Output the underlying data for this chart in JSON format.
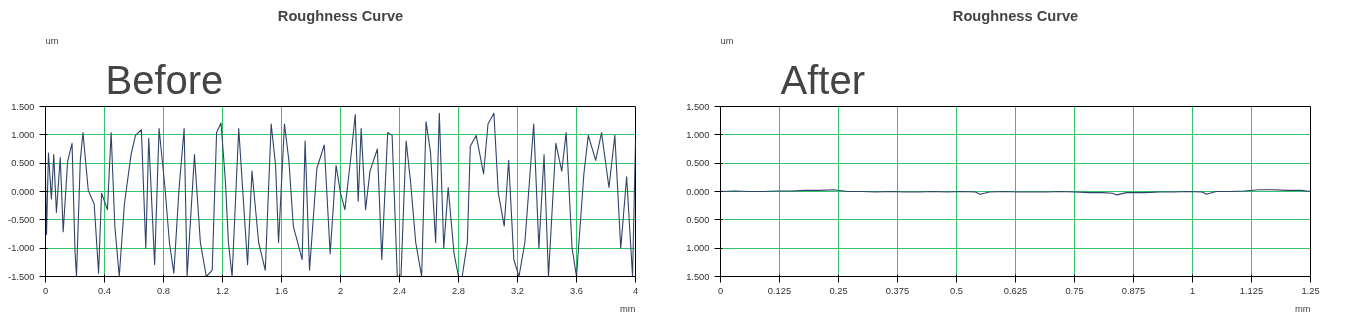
{
  "chart_data": [
    {
      "type": "line",
      "title": "Roughness Curve",
      "ylabel": "um",
      "xlabel": "mm",
      "annotations": [
        "Before"
      ],
      "grid": true,
      "marker": "none",
      "line_style": "solid",
      "xlim": [
        0,
        4
      ],
      "ylim": [
        -1.5,
        1.5
      ],
      "xticks": [
        0,
        0.4,
        0.8,
        1.2,
        1.6,
        2,
        2.4,
        2.8,
        3.2,
        3.6,
        4
      ],
      "yticks": [
        {
          "value": -1.5,
          "label": "-1.500"
        },
        {
          "value": -1,
          "label": "-1.000"
        },
        {
          "value": -0.5,
          "label": "-0.500"
        },
        {
          "value": 0,
          "label": "0.000"
        },
        {
          "value": 0.5,
          "label": "0.500"
        },
        {
          "value": 1,
          "label": "1.000"
        },
        {
          "value": 1.5,
          "label": "1.500"
        }
      ],
      "x": [
        0,
        0.007,
        0.02,
        0.04,
        0.056,
        0.074,
        0.1,
        0.12,
        0.15,
        0.18,
        0.2,
        0.21,
        0.236,
        0.254,
        0.29,
        0.33,
        0.36,
        0.38,
        0.42,
        0.445,
        0.47,
        0.5,
        0.535,
        0.58,
        0.61,
        0.65,
        0.68,
        0.7,
        0.74,
        0.77,
        0.81,
        0.84,
        0.87,
        0.906,
        0.94,
        0.96,
        1.01,
        1.05,
        1.09,
        1.13,
        1.16,
        1.19,
        1.22,
        1.24,
        1.265,
        1.31,
        1.33,
        1.37,
        1.4,
        1.445,
        1.49,
        1.53,
        1.56,
        1.58,
        1.62,
        1.65,
        1.68,
        1.74,
        1.76,
        1.79,
        1.84,
        1.89,
        1.93,
        1.97,
        2.0,
        2.03,
        2.07,
        2.1,
        2.12,
        2.14,
        2.17,
        2.2,
        2.25,
        2.28,
        2.32,
        2.35,
        2.385,
        2.41,
        2.445,
        2.475,
        2.51,
        2.55,
        2.58,
        2.61,
        2.645,
        2.67,
        2.7,
        2.73,
        2.77,
        2.8,
        2.825,
        2.86,
        2.88,
        2.92,
        2.97,
        3.0,
        3.04,
        3.07,
        3.11,
        3.14,
        3.175,
        3.21,
        3.25,
        3.31,
        3.345,
        3.38,
        3.41,
        3.46,
        3.5,
        3.53,
        3.57,
        3.6,
        3.65,
        3.68,
        3.73,
        3.77,
        3.82,
        3.86,
        3.9,
        3.94,
        3.98,
        4.0
      ],
      "series": [
        {
          "color": "#2e4468",
          "values": [
            0.26,
            -0.76,
            0.68,
            -0.13,
            0.65,
            -0.37,
            0.6,
            -0.71,
            0.53,
            0.85,
            -1.05,
            -1.5,
            0.55,
            1.04,
            0.02,
            -0.22,
            -1.44,
            -0.03,
            -0.32,
            1.04,
            -0.61,
            -1.5,
            -0.22,
            0.65,
            0.99,
            1.09,
            -1.0,
            0.94,
            -1.29,
            1.11,
            0.07,
            -0.9,
            -1.44,
            0.07,
            1.11,
            -1.5,
            0.65,
            -0.9,
            -1.5,
            -1.39,
            1.04,
            1.21,
            0.17,
            -0.9,
            -1.5,
            1.11,
            0.31,
            -1.29,
            0.36,
            -0.9,
            -1.39,
            1.19,
            0.46,
            -0.9,
            1.19,
            0.55,
            -0.61,
            -1.2,
            0.89,
            -1.39,
            0.41,
            0.82,
            -1.1,
            0.46,
            -0.03,
            -0.32,
            0.6,
            1.36,
            -0.17,
            1.11,
            -0.32,
            0.36,
            0.75,
            -1.2,
            1.04,
            0.99,
            -1.5,
            -1.5,
            0.89,
            0.17,
            -0.9,
            -1.5,
            1.23,
            0.7,
            -0.9,
            1.38,
            -1.0,
            0.07,
            -1.1,
            -1.5,
            -1.5,
            -0.9,
            0.8,
            0.99,
            0.31,
            1.19,
            1.38,
            -0.03,
            -0.61,
            0.55,
            -1.2,
            -1.5,
            -0.9,
            1.19,
            -1.0,
            0.65,
            -1.5,
            0.85,
            0.36,
            1.04,
            -1.0,
            -1.5,
            0.31,
            0.99,
            0.55,
            1.04,
            0.07,
            0.99,
            -1.0,
            0.26,
            -1.5,
            0.89
          ]
        }
      ]
    },
    {
      "type": "line",
      "title": "Roughness Curve",
      "ylabel": "um",
      "xlabel": "mm",
      "annotations": [
        "After"
      ],
      "grid": true,
      "marker": "none",
      "line_style": "solid",
      "xlim": [
        0,
        1.25
      ],
      "ylim": [
        -1.5,
        1.5
      ],
      "xticks": [
        0,
        0.125,
        0.25,
        0.375,
        0.5,
        0.625,
        0.75,
        0.875,
        1,
        1.125,
        1.25
      ],
      "yticks": [
        {
          "value": -1.5,
          "label": "1.500"
        },
        {
          "value": -1,
          "label": "1.000"
        },
        {
          "value": -0.5,
          "label": "0.500"
        },
        {
          "value": 0,
          "label": "0.000"
        },
        {
          "value": 0.5,
          "label": "0.500"
        },
        {
          "value": 1,
          "label": "1.000"
        },
        {
          "value": 1.5,
          "label": "1.500"
        }
      ],
      "x": [
        0,
        0.03,
        0.06,
        0.09,
        0.12,
        0.15,
        0.18,
        0.21,
        0.24,
        0.27,
        0.3,
        0.33,
        0.36,
        0.39,
        0.42,
        0.45,
        0.48,
        0.51,
        0.54,
        0.55,
        0.57,
        0.6,
        0.63,
        0.66,
        0.69,
        0.72,
        0.75,
        0.78,
        0.81,
        0.83,
        0.84,
        0.86,
        0.9,
        0.93,
        0.96,
        0.99,
        1.02,
        1.03,
        1.05,
        1.08,
        1.11,
        1.14,
        1.17,
        1.2,
        1.23,
        1.25
      ],
      "series": [
        {
          "color": "#2e4468",
          "values": [
            0.0,
            0.01,
            0.0,
            0.0,
            0.01,
            0.01,
            0.02,
            0.02,
            0.03,
            0.0,
            0.0,
            -0.01,
            0.0,
            -0.01,
            -0.01,
            0.0,
            -0.01,
            0.0,
            -0.01,
            -0.05,
            -0.01,
            0.0,
            -0.01,
            -0.01,
            -0.01,
            0.0,
            -0.01,
            -0.02,
            -0.02,
            -0.03,
            -0.06,
            -0.02,
            -0.02,
            -0.01,
            -0.01,
            0.0,
            -0.01,
            -0.05,
            0.0,
            0.0,
            0.01,
            0.03,
            0.03,
            0.02,
            0.02,
            0.0
          ]
        }
      ]
    }
  ]
}
